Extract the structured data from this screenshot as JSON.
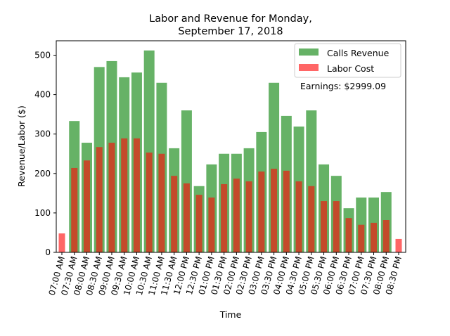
{
  "chart_data": {
    "type": "bar",
    "title": "Labor and Revenue for Monday,\nSeptember 17, 2018",
    "title_lines": [
      "Labor and Revenue for Monday,",
      "September 17, 2018"
    ],
    "xlabel": "Time",
    "ylabel": "Revenue/Labor ($)",
    "ylim": [
      0,
      540
    ],
    "yticks": [
      0,
      100,
      200,
      300,
      400,
      500
    ],
    "grid": false,
    "legend_position": "top-right",
    "annotation": "Earnings: $2999.09",
    "categories": [
      "07:00 AM",
      "07:30 AM",
      "08:00 AM",
      "08:30 AM",
      "09:00 AM",
      "09:30 AM",
      "10:00 AM",
      "10:30 AM",
      "11:00 AM",
      "11:30 AM",
      "12:00 PM",
      "12:30 PM",
      "01:00 PM",
      "01:30 PM",
      "02:00 PM",
      "02:30 PM",
      "03:00 PM",
      "03:30 PM",
      "04:00 PM",
      "04:30 PM",
      "05:00 PM",
      "05:30 PM",
      "06:00 PM",
      "06:30 PM",
      "07:00 PM",
      "07:30 PM",
      "08:00 PM",
      "08:30 PM"
    ],
    "series": [
      {
        "name": "Calls Revenue",
        "color": "#66b266",
        "values": [
          0,
          333,
          278,
          470,
          485,
          444,
          456,
          512,
          430,
          264,
          360,
          168,
          223,
          250,
          250,
          264,
          305,
          430,
          346,
          319,
          360,
          223,
          194,
          112,
          139,
          139,
          153,
          0
        ]
      },
      {
        "name": "Labor Cost",
        "color": "#ff6666",
        "overlap_color": "#c44a2a",
        "values": [
          48,
          214,
          233,
          267,
          278,
          289,
          289,
          253,
          250,
          194,
          175,
          146,
          139,
          173,
          187,
          180,
          205,
          212,
          207,
          180,
          168,
          130,
          130,
          87,
          70,
          75,
          82,
          34
        ]
      }
    ]
  }
}
